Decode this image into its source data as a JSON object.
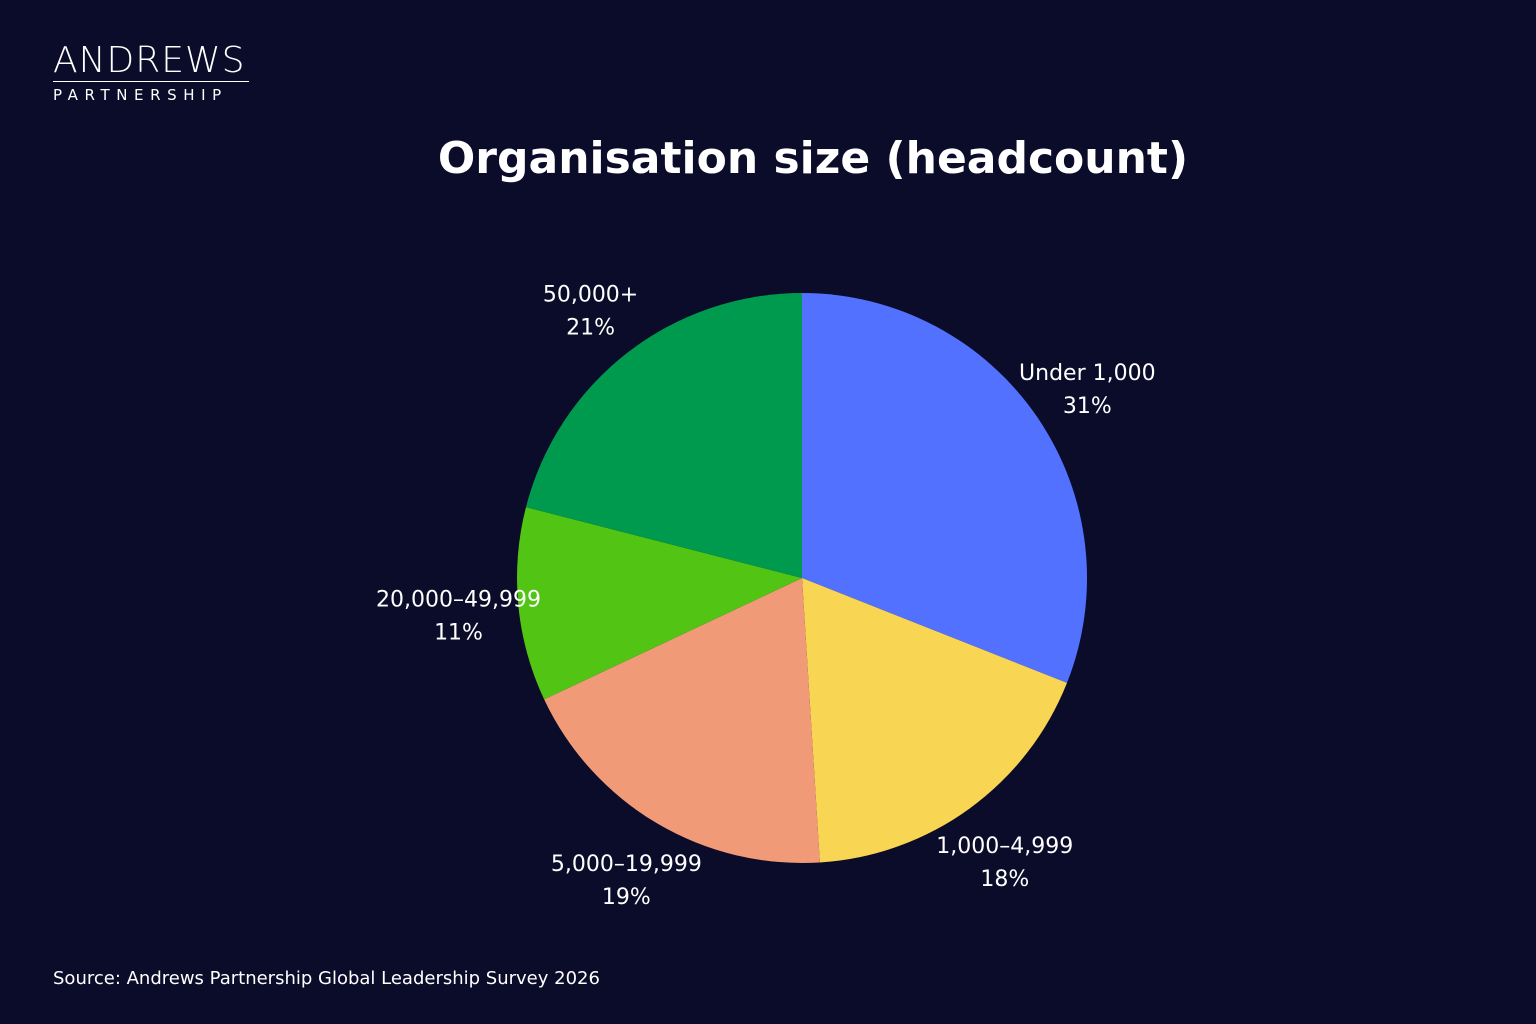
{
  "logo": {
    "main": "ANDREWS",
    "sub": "PARTNERSHIP"
  },
  "footer": {
    "source": "Source: Andrews Partnership Global Leadership Survey 2026"
  },
  "colors": {
    "background": "#0b0b2a",
    "text": "#ffffff"
  },
  "chart_data": {
    "type": "pie",
    "title": "Organisation size (headcount)",
    "unit": "%",
    "slices": [
      {
        "label": "Under 1,000",
        "value": 31,
        "display": "31%",
        "color": "#5271ff"
      },
      {
        "label": "1,000–4,999",
        "value": 18,
        "display": "18%",
        "color": "#f9d554"
      },
      {
        "label": "5,000–19,999",
        "value": 19,
        "display": "19%",
        "color": "#f19a78"
      },
      {
        "label": "20,000–49,999",
        "value": 11,
        "display": "11%",
        "color": "#52c414"
      },
      {
        "label": "50,000+",
        "value": 21,
        "display": "21%",
        "color": "#009a4e"
      }
    ],
    "start": "12 o'clock",
    "direction": "clockwise",
    "legend": "none (labels outside slices)"
  }
}
